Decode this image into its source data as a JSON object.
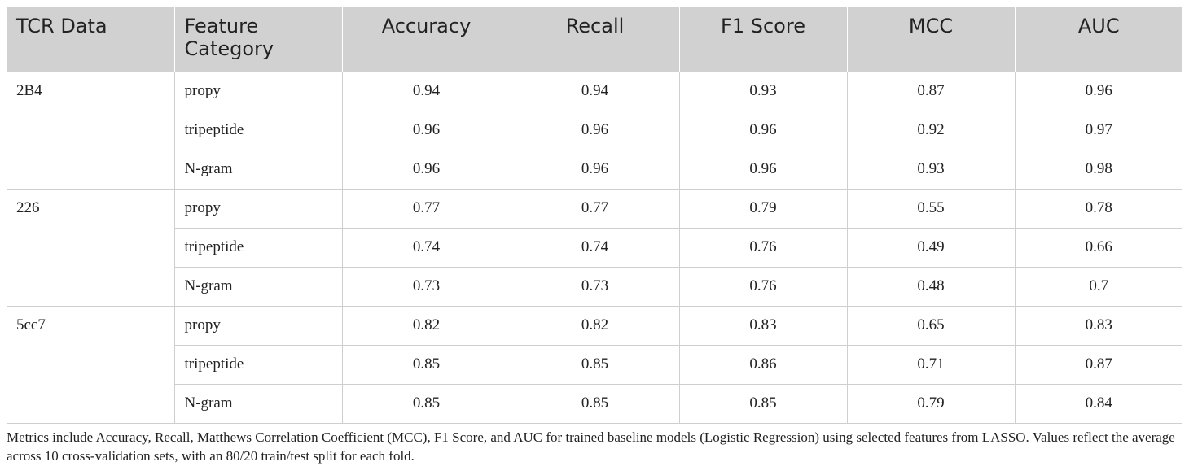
{
  "table": {
    "headers": [
      "TCR Data",
      "Feature Category",
      "Accuracy",
      "Recall",
      "F1 Score",
      "MCC",
      "AUC"
    ],
    "rows": [
      [
        "2B4",
        "propy",
        "0.94",
        "0.94",
        "0.93",
        "0.87",
        "0.96"
      ],
      [
        "",
        "tripeptide",
        "0.96",
        "0.96",
        "0.96",
        "0.92",
        "0.97"
      ],
      [
        "",
        "N-gram",
        "0.96",
        "0.96",
        "0.96",
        "0.93",
        "0.98"
      ],
      [
        "226",
        "propy",
        "0.77",
        "0.77",
        "0.79",
        "0.55",
        "0.78"
      ],
      [
        "",
        "tripeptide",
        "0.74",
        "0.74",
        "0.76",
        "0.49",
        "0.66"
      ],
      [
        "",
        "N-gram",
        "0.73",
        "0.73",
        "0.76",
        "0.48",
        "0.7"
      ],
      [
        "5cc7",
        "propy",
        "0.82",
        "0.82",
        "0.83",
        "0.65",
        "0.83"
      ],
      [
        "",
        "tripeptide",
        "0.85",
        "0.85",
        "0.86",
        "0.71",
        "0.87"
      ],
      [
        "",
        "N-gram",
        "0.85",
        "0.85",
        "0.85",
        "0.79",
        "0.84"
      ]
    ]
  },
  "caption": "Metrics include Accuracy, Recall, Matthews Correlation Coefficient (MCC), F1 Score, and AUC for trained baseline models (Logistic Regression) using selected features from LASSO. Values reflect the average across 10 cross-validation sets, with an 80/20 train/test split for each fold."
}
